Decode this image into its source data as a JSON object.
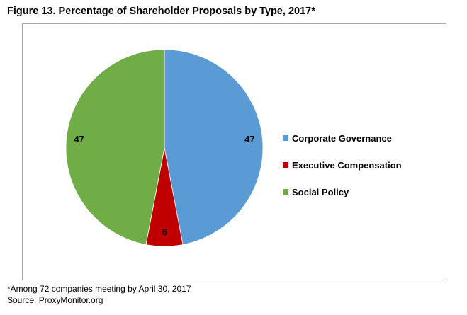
{
  "figure_title": "Figure 13. Percentage of Shareholder Proposals by Type, 2017*",
  "footnote": "*Among 72 companies meeting by April 30, 2017",
  "source": "Source: ProxyMonitor.org",
  "chart_data": {
    "type": "pie",
    "title": "Figure 13. Percentage of Shareholder Proposals by Type, 2017*",
    "categories": [
      "Corporate Governance",
      "Executive Compensation",
      "Social Policy"
    ],
    "values": [
      47,
      6,
      47
    ],
    "data_labels": [
      "47",
      "6",
      "47"
    ],
    "colors": [
      "#5b9bd5",
      "#c00000",
      "#70ad47"
    ],
    "start_angle_deg": 0,
    "direction": "clockwise",
    "legend_position": "right"
  }
}
